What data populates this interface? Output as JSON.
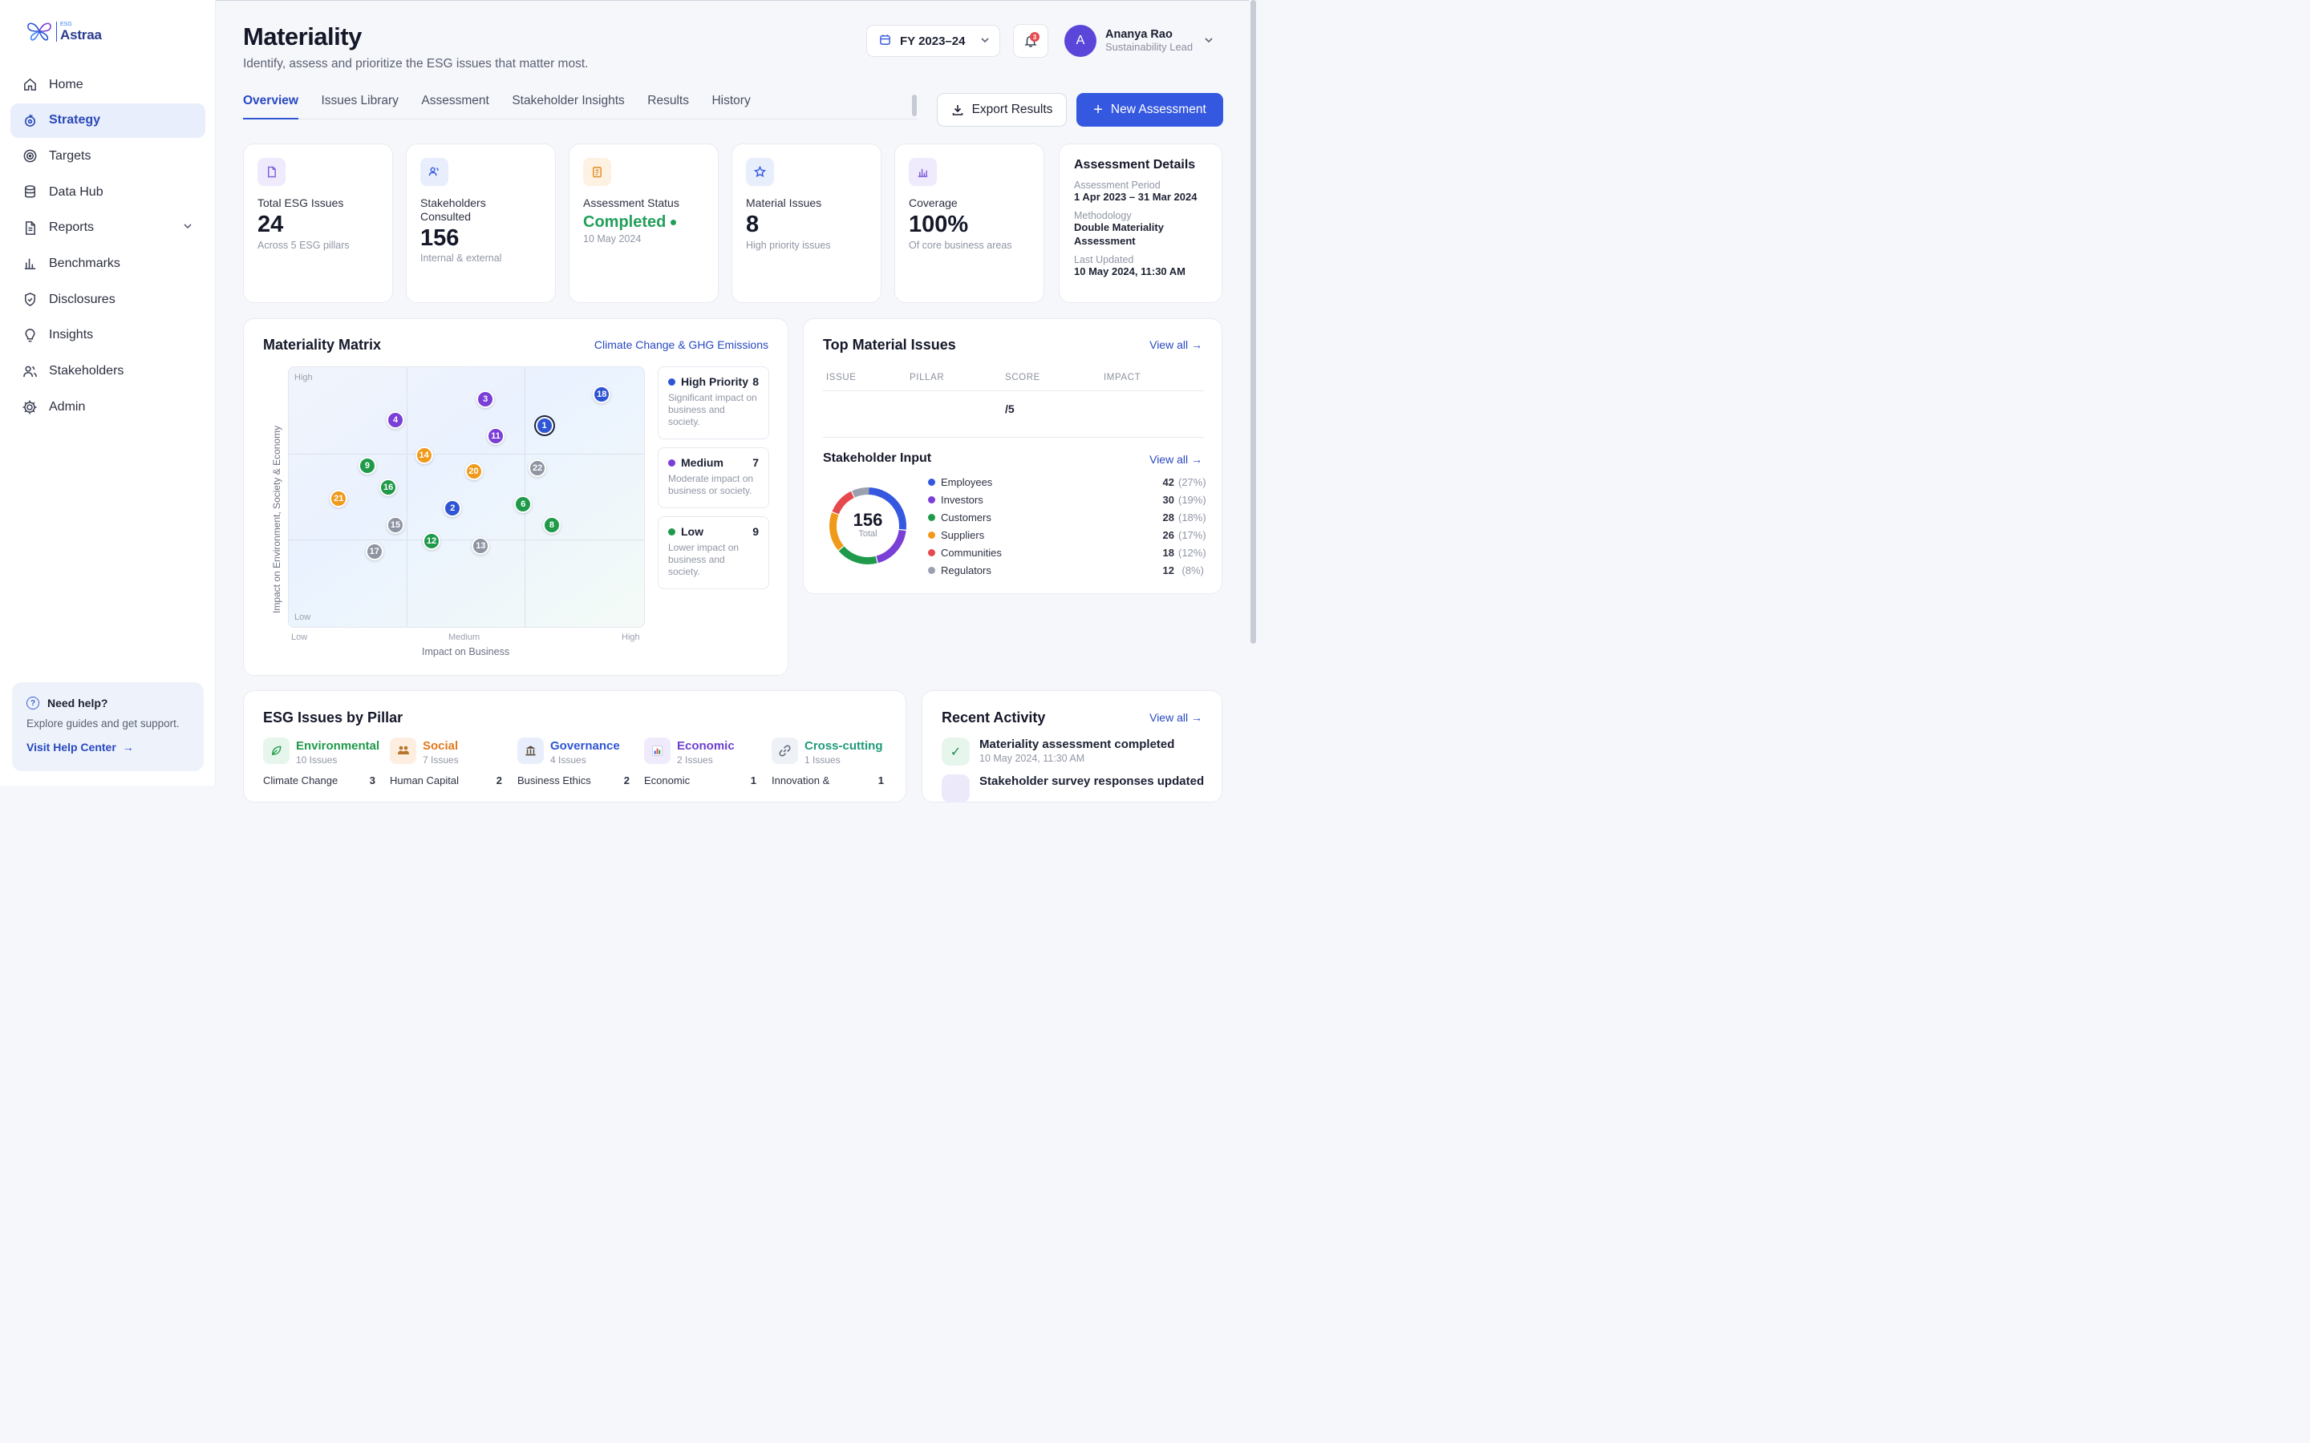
{
  "brand": {
    "sup": "ESG",
    "name": "Astraa"
  },
  "sidebar": {
    "items": [
      {
        "label": "Home",
        "icon": "home-icon"
      },
      {
        "label": "Strategy",
        "icon": "target-icon",
        "active": true
      },
      {
        "label": "Targets",
        "icon": "bullseye-icon"
      },
      {
        "label": "Data Hub",
        "icon": "database-icon"
      },
      {
        "label": "Reports",
        "icon": "report-icon",
        "expandable": true
      },
      {
        "label": "Benchmarks",
        "icon": "bar-chart-icon"
      },
      {
        "label": "Disclosures",
        "icon": "shield-icon"
      },
      {
        "label": "Insights",
        "icon": "lightbulb-icon"
      },
      {
        "label": "Stakeholders",
        "icon": "users-icon"
      },
      {
        "label": "Admin",
        "icon": "gear-icon"
      }
    ],
    "help": {
      "title": "Need help?",
      "subtitle": "Explore guides and get support.",
      "link": "Visit Help Center"
    }
  },
  "header": {
    "title": "Materiality",
    "subtitle": "Identify, assess and prioritize the ESG issues that matter most.",
    "fiscal_year": "FY 2023–24",
    "notifications": "3",
    "user": {
      "initial": "A",
      "name": "Ananya Rao",
      "role": "Sustainability Lead"
    }
  },
  "tabs": [
    {
      "label": "Overview",
      "active": true
    },
    {
      "label": "Issues Library"
    },
    {
      "label": "Assessment"
    },
    {
      "label": "Stakeholder Insights"
    },
    {
      "label": "Results"
    },
    {
      "label": "History"
    }
  ],
  "actions": {
    "export": "Export Results",
    "new": "New Assessment"
  },
  "kpis": [
    {
      "label": "Total ESG Issues",
      "value": "24",
      "sub": "Across 5 ESG pillars",
      "icon": "document-icon",
      "color": "#7c5cd9",
      "bg": "#efeafc"
    },
    {
      "label": "Stakeholders Consulted",
      "value": "156",
      "sub": "Internal & external",
      "icon": "users-icon",
      "color": "#3458e0",
      "bg": "#e8eefc"
    },
    {
      "label": "Assessment Status",
      "value": "Completed",
      "sub": "10 May 2024",
      "icon": "clipboard-icon",
      "color": "#e08a1e",
      "bg": "#fdf1e2"
    },
    {
      "label": "Material Issues",
      "value": "8",
      "sub": "High priority issues",
      "icon": "star-icon",
      "color": "#3458e0",
      "bg": "#e8eefc"
    },
    {
      "label": "Coverage",
      "value": "100%",
      "sub": "Of core business areas",
      "icon": "bar-chart-icon",
      "color": "#7c5cd9",
      "bg": "#efeafc"
    }
  ],
  "assessment_details": {
    "title": "Assessment Details",
    "period_label": "Assessment Period",
    "period": "1 Apr 2023 – 31 Mar 2024",
    "method_label": "Methodology",
    "method": "Double Materiality Assessment",
    "updated_label": "Last Updated",
    "updated": "10 May 2024, 11:30 AM"
  },
  "matrix": {
    "title": "Materiality Matrix",
    "selected_issue": "Climate Change & GHG Emissions",
    "y_axis": "Impact on Environment, Society & Economy",
    "x_axis": "Impact on Business",
    "y_high": "High",
    "y_low": "Low",
    "x_ticks": [
      "Low",
      "Medium",
      "High"
    ],
    "colors": {
      "high": "#2f55d4",
      "medium": "#7a3fd6",
      "low": "#1f9a4a",
      "amber": "#f09a1c",
      "gray": "#8f94a3"
    },
    "points": [
      {
        "n": "1",
        "x": 0.716,
        "y": 0.775,
        "c": "high",
        "sel": true
      },
      {
        "n": "18",
        "x": 0.877,
        "y": 0.895,
        "c": "high"
      },
      {
        "n": "3",
        "x": 0.551,
        "y": 0.878,
        "c": "medium"
      },
      {
        "n": "4",
        "x": 0.299,
        "y": 0.797,
        "c": "medium"
      },
      {
        "n": "11",
        "x": 0.58,
        "y": 0.736,
        "c": "medium"
      },
      {
        "n": "14",
        "x": 0.379,
        "y": 0.663,
        "c": "amber"
      },
      {
        "n": "9",
        "x": 0.22,
        "y": 0.624,
        "c": "low"
      },
      {
        "n": "20",
        "x": 0.518,
        "y": 0.601,
        "c": "amber"
      },
      {
        "n": "22",
        "x": 0.697,
        "y": 0.614,
        "c": "gray"
      },
      {
        "n": "16",
        "x": 0.279,
        "y": 0.54,
        "c": "low"
      },
      {
        "n": "21",
        "x": 0.14,
        "y": 0.497,
        "c": "amber"
      },
      {
        "n": "6",
        "x": 0.657,
        "y": 0.475,
        "c": "low"
      },
      {
        "n": "2",
        "x": 0.459,
        "y": 0.46,
        "c": "high"
      },
      {
        "n": "15",
        "x": 0.299,
        "y": 0.396,
        "c": "gray"
      },
      {
        "n": "8",
        "x": 0.737,
        "y": 0.396,
        "c": "low"
      },
      {
        "n": "12",
        "x": 0.4,
        "y": 0.335,
        "c": "low"
      },
      {
        "n": "13",
        "x": 0.538,
        "y": 0.317,
        "c": "gray"
      },
      {
        "n": "17",
        "x": 0.24,
        "y": 0.295,
        "c": "gray"
      }
    ],
    "priorities": [
      {
        "label": "High Priority",
        "count": "8",
        "desc": "Significant impact on business and society.",
        "c": "#2f55d4"
      },
      {
        "label": "Medium",
        "count": "7",
        "desc": "Moderate impact on business or society.",
        "c": "#7a3fd6"
      },
      {
        "label": "Low",
        "count": "9",
        "desc": "Lower impact on business and society.",
        "c": "#1f9a4a"
      }
    ]
  },
  "top_material": {
    "title": "Top Material Issues",
    "view_all": "View all →",
    "columns": [
      "ISSUE",
      "PILLAR",
      "SCORE",
      "IMPACT"
    ],
    "score_suffix": "/5"
  },
  "stakeholder_input": {
    "title": "Stakeholder Input",
    "view_all": "View all →",
    "total": "156",
    "total_label": "Total",
    "groups": [
      {
        "name": "Employees",
        "count": "42",
        "pct": "(27%)",
        "c": "#3458e0",
        "share": 0.27
      },
      {
        "name": "Investors",
        "count": "30",
        "pct": "(19%)",
        "c": "#7a3fd6",
        "share": 0.19
      },
      {
        "name": "Customers",
        "count": "28",
        "pct": "(18%)",
        "c": "#1f9a4a",
        "share": 0.18
      },
      {
        "name": "Suppliers",
        "count": "26",
        "pct": "(17%)",
        "c": "#f09a1c",
        "share": 0.17
      },
      {
        "name": "Communities",
        "count": "18",
        "pct": "(12%)",
        "c": "#e5484d",
        "share": 0.12
      },
      {
        "name": "Regulators",
        "count": "12",
        "pct": "(8%)",
        "c": "#9aa0ae",
        "share": 0.08
      }
    ]
  },
  "pillars": {
    "title": "ESG Issues by Pillar",
    "items": [
      {
        "name": "Environmental",
        "count": "10 Issues",
        "first": "Climate Change",
        "first_n": "3",
        "c": "#1f9a4a",
        "bg": "#e6f6ec",
        "icon": "leaf-icon",
        "glyph": "🌿"
      },
      {
        "name": "Social",
        "count": "7 Issues",
        "first": "Human Capital",
        "first_n": "2",
        "c": "#e07a1e",
        "bg": "#fdeee0",
        "icon": "people-icon",
        "glyph": "👥"
      },
      {
        "name": "Governance",
        "count": "4 Issues",
        "first": "Business Ethics",
        "first_n": "2",
        "c": "#2f55d4",
        "bg": "#e8eefc",
        "icon": "bank-icon",
        "glyph": "🏛"
      },
      {
        "name": "Economic",
        "count": "2 Issues",
        "first": "Economic",
        "first_n": "1",
        "c": "#6b3fd0",
        "bg": "#efeafc",
        "icon": "chart-icon",
        "glyph": "📊"
      },
      {
        "name": "Cross-cutting",
        "count": "1 Issues",
        "first": "Innovation &",
        "first_n": "1",
        "c": "#1f9a7a",
        "bg": "#e6f5f1",
        "icon": "link-icon",
        "glyph": "🔗"
      }
    ]
  },
  "recent": {
    "title": "Recent Activity",
    "view_all": "View all →",
    "items": [
      {
        "title": "Materiality assessment completed",
        "date": "10 May 2024, 11:30 AM"
      },
      {
        "title": "Stakeholder survey responses updated",
        "date": ""
      }
    ]
  }
}
